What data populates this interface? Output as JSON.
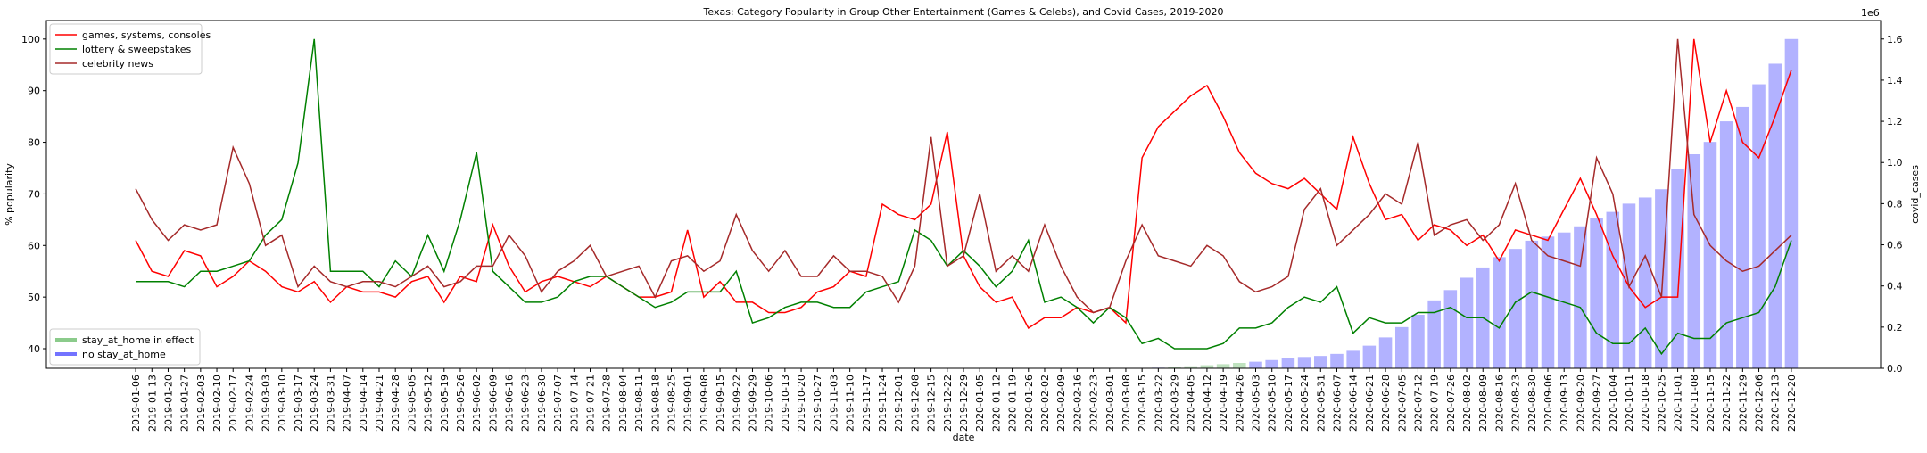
{
  "chart_data": {
    "type": "line",
    "title": "Texas: Category Popularity in Group Other Entertainment (Games & Celebs), and Covid Cases, 2019-2020",
    "x_label": "date",
    "y_label": "% popularity",
    "y2_label": "covid_cases",
    "y2_offset_label": "1e6",
    "categories": [
      "2019-01-06",
      "2019-01-13",
      "2019-01-20",
      "2019-01-27",
      "2019-02-03",
      "2019-02-10",
      "2019-02-17",
      "2019-02-24",
      "2019-03-03",
      "2019-03-10",
      "2019-03-17",
      "2019-03-24",
      "2019-03-31",
      "2019-04-07",
      "2019-04-14",
      "2019-04-21",
      "2019-04-28",
      "2019-05-05",
      "2019-05-12",
      "2019-05-19",
      "2019-05-26",
      "2019-06-02",
      "2019-06-09",
      "2019-06-16",
      "2019-06-23",
      "2019-06-30",
      "2019-07-07",
      "2019-07-14",
      "2019-07-21",
      "2019-07-28",
      "2019-08-04",
      "2019-08-11",
      "2019-08-18",
      "2019-08-25",
      "2019-09-01",
      "2019-09-08",
      "2019-09-15",
      "2019-09-22",
      "2019-09-29",
      "2019-10-06",
      "2019-10-13",
      "2019-10-20",
      "2019-10-27",
      "2019-11-03",
      "2019-11-10",
      "2019-11-17",
      "2019-11-24",
      "2019-12-01",
      "2019-12-08",
      "2019-12-15",
      "2019-12-22",
      "2019-12-29",
      "2020-01-05",
      "2020-01-12",
      "2020-01-19",
      "2020-01-26",
      "2020-02-02",
      "2020-02-09",
      "2020-02-16",
      "2020-02-23",
      "2020-03-01",
      "2020-03-08",
      "2020-03-15",
      "2020-03-22",
      "2020-03-29",
      "2020-04-05",
      "2020-04-12",
      "2020-04-19",
      "2020-04-26",
      "2020-05-03",
      "2020-05-10",
      "2020-05-17",
      "2020-05-24",
      "2020-05-31",
      "2020-06-07",
      "2020-06-14",
      "2020-06-21",
      "2020-06-28",
      "2020-07-05",
      "2020-07-12",
      "2020-07-19",
      "2020-07-26",
      "2020-08-02",
      "2020-08-09",
      "2020-08-16",
      "2020-08-23",
      "2020-08-30",
      "2020-09-06",
      "2020-09-13",
      "2020-09-20",
      "2020-09-27",
      "2020-10-04",
      "2020-10-11",
      "2020-10-18",
      "2020-10-25",
      "2020-11-01",
      "2020-11-08",
      "2020-11-15",
      "2020-11-22",
      "2020-11-29",
      "2020-12-06",
      "2020-12-13",
      "2020-12-20"
    ],
    "series": [
      {
        "name": "games, systems, consoles",
        "color": "#ff0000",
        "values": [
          61,
          55,
          54,
          59,
          58,
          52,
          54,
          57,
          55,
          52,
          51,
          53,
          49,
          52,
          51,
          51,
          50,
          53,
          54,
          49,
          54,
          53,
          64,
          56,
          51,
          53,
          54,
          53,
          52,
          54,
          52,
          50,
          50,
          51,
          63,
          50,
          53,
          49,
          49,
          47,
          47,
          48,
          51,
          52,
          55,
          54,
          68,
          66,
          65,
          68,
          82,
          58,
          52,
          49,
          50,
          44,
          46,
          46,
          48,
          47,
          48,
          45,
          77,
          83,
          86,
          89,
          91,
          85,
          78,
          74,
          72,
          71,
          73,
          70,
          67,
          81,
          72,
          65,
          66,
          61,
          64,
          63,
          60,
          62,
          57,
          63,
          62,
          61,
          67,
          73,
          66,
          58,
          52,
          48,
          50,
          50,
          100,
          80,
          90,
          80,
          77,
          85,
          94
        ]
      },
      {
        "name": "lottery & sweepstakes",
        "color": "#008000",
        "values": [
          53,
          53,
          53,
          52,
          55,
          55,
          56,
          57,
          62,
          65,
          76,
          100,
          55,
          55,
          55,
          52,
          57,
          54,
          62,
          55,
          65,
          78,
          55,
          52,
          49,
          49,
          50,
          53,
          54,
          54,
          52,
          50,
          48,
          49,
          51,
          51,
          51,
          55,
          45,
          46,
          48,
          49,
          49,
          48,
          48,
          51,
          52,
          53,
          63,
          61,
          56,
          59,
          56,
          52,
          55,
          61,
          49,
          50,
          48,
          45,
          48,
          46,
          41,
          42,
          40,
          40,
          40,
          41,
          44,
          44,
          45,
          48,
          50,
          49,
          52,
          43,
          46,
          45,
          45,
          47,
          47,
          48,
          46,
          46,
          44,
          49,
          51,
          50,
          49,
          48,
          43,
          41,
          41,
          44,
          39,
          43,
          42,
          42,
          45,
          46,
          47,
          52,
          61
        ]
      },
      {
        "name": "celebrity news",
        "color": "#a52a2a",
        "values": [
          71,
          65,
          61,
          64,
          63,
          64,
          79,
          72,
          60,
          62,
          52,
          56,
          53,
          52,
          53,
          53,
          52,
          54,
          56,
          52,
          53,
          56,
          56,
          62,
          58,
          51,
          55,
          57,
          60,
          54,
          55,
          56,
          50,
          57,
          58,
          55,
          57,
          66,
          59,
          55,
          59,
          54,
          54,
          58,
          55,
          55,
          54,
          49,
          56,
          81,
          56,
          58,
          70,
          55,
          58,
          55,
          64,
          56,
          50,
          47,
          48,
          57,
          64,
          58,
          57,
          56,
          60,
          58,
          53,
          51,
          52,
          54,
          67,
          71,
          60,
          63,
          66,
          70,
          68,
          80,
          62,
          64,
          65,
          61,
          64,
          72,
          61,
          58,
          57,
          56,
          77,
          70,
          52,
          58,
          50,
          100,
          66,
          60,
          57,
          55,
          56,
          59,
          62
        ]
      }
    ],
    "bar_series": {
      "name": "covid_cases",
      "axis": "y2",
      "values": [
        0,
        0,
        0,
        0,
        0,
        0,
        0,
        0,
        0,
        0,
        0,
        0,
        0,
        0,
        0,
        0,
        0,
        0,
        0,
        0,
        0,
        0,
        0,
        0,
        0,
        0,
        0,
        0,
        0,
        0,
        0,
        0,
        0,
        0,
        0,
        0,
        0,
        0,
        0,
        0,
        0,
        0,
        0,
        0,
        0,
        0,
        0,
        0,
        0,
        0,
        0,
        0,
        0,
        0,
        0,
        0,
        0,
        0,
        0,
        0,
        0,
        0,
        1000,
        3000,
        6000,
        10000,
        15000,
        20000,
        26000,
        32000,
        40000,
        48000,
        55000,
        60000,
        70000,
        85000,
        110000,
        150000,
        200000,
        260000,
        330000,
        380000,
        440000,
        490000,
        540000,
        580000,
        620000,
        640000,
        660000,
        690000,
        730000,
        760000,
        800000,
        830000,
        870000,
        970000,
        1040000,
        1100000,
        1200000,
        1270000,
        1380000,
        1480000,
        1600000
      ],
      "stay_at_home": [
        false,
        false,
        false,
        false,
        false,
        false,
        false,
        false,
        false,
        false,
        false,
        false,
        false,
        false,
        false,
        false,
        false,
        false,
        false,
        false,
        false,
        false,
        false,
        false,
        false,
        false,
        false,
        false,
        false,
        false,
        false,
        false,
        false,
        false,
        false,
        false,
        false,
        false,
        false,
        false,
        false,
        false,
        false,
        false,
        false,
        false,
        false,
        false,
        false,
        false,
        false,
        false,
        false,
        false,
        false,
        false,
        false,
        false,
        false,
        false,
        false,
        false,
        false,
        false,
        true,
        true,
        true,
        true,
        true,
        false,
        false,
        false,
        false,
        false,
        false,
        false,
        false,
        false,
        false,
        false,
        false,
        false,
        false,
        false,
        false,
        false,
        false,
        false,
        false,
        false,
        false,
        false,
        false,
        false,
        false,
        false,
        false,
        false,
        false,
        false,
        false,
        false,
        false
      ]
    },
    "bar_legend": [
      {
        "name": "stay_at_home in effect",
        "color": "#2ca02c"
      },
      {
        "name": "no stay_at_home",
        "color": "#0000ff"
      }
    ],
    "bar_alpha": 0.3,
    "ylim": [
      36.2,
      103.6
    ],
    "yticks": [
      40,
      50,
      60,
      70,
      80,
      90,
      100
    ],
    "y2lim": [
      0,
      1690000
    ],
    "y2ticks": [
      {
        "value": 0,
        "label": "0.0"
      },
      {
        "value": 200000,
        "label": "0.2"
      },
      {
        "value": 400000,
        "label": "0.4"
      },
      {
        "value": 600000,
        "label": "0.6"
      },
      {
        "value": 800000,
        "label": "0.8"
      },
      {
        "value": 1000000,
        "label": "1.0"
      },
      {
        "value": 1200000,
        "label": "1.2"
      },
      {
        "value": 1400000,
        "label": "1.4"
      },
      {
        "value": 1600000,
        "label": "1.6"
      }
    ],
    "legend": "upper left",
    "bar_legend_position": "lower left",
    "grid": false
  }
}
